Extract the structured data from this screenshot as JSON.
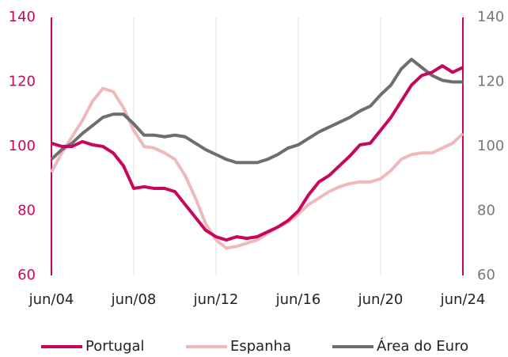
{
  "chart_data": {
    "type": "line",
    "categories": [
      "jun/04",
      null,
      null,
      null,
      null,
      null,
      null,
      null,
      "jun/08",
      null,
      null,
      null,
      null,
      null,
      null,
      null,
      "jun/12",
      null,
      null,
      null,
      null,
      null,
      null,
      null,
      "jun/16",
      null,
      null,
      null,
      null,
      null,
      null,
      null,
      "jun/20",
      null,
      null,
      null,
      null,
      null,
      null,
      null,
      "jun/24"
    ],
    "series": [
      {
        "name": "Portugal",
        "color": "#c8075c",
        "values": [
          101,
          100,
          100,
          101.5,
          100.5,
          100,
          98,
          94,
          87,
          87.5,
          87,
          87,
          86,
          82,
          78,
          74,
          72,
          71,
          72,
          71.5,
          72,
          73.5,
          75,
          77,
          80,
          85,
          89,
          91,
          94,
          97,
          100.5,
          101,
          105,
          109,
          114,
          119,
          122,
          123,
          125,
          123,
          124.5
        ]
      },
      {
        "name": "Espanha",
        "color": "#efb9bc",
        "values": [
          92,
          98,
          103,
          108,
          114,
          118,
          117,
          112,
          105,
          100,
          99.5,
          98,
          96,
          91,
          84,
          76,
          71,
          68.5,
          69,
          70,
          71,
          73,
          75,
          76.5,
          79,
          82,
          84,
          86,
          87.5,
          88.5,
          89,
          89,
          90,
          92.5,
          96,
          97.5,
          98,
          98,
          99.5,
          101,
          104
        ]
      },
      {
        "name": "Área do Euro",
        "color": "#6e6e6e",
        "values": [
          96,
          99,
          101,
          104,
          106.5,
          109,
          110,
          110,
          107,
          103.5,
          103.5,
          103,
          103.5,
          103,
          101,
          99,
          97.5,
          96,
          95,
          95,
          95,
          96,
          97.5,
          99.5,
          100.5,
          102.5,
          104.5,
          106,
          107.5,
          109,
          111,
          112.5,
          116,
          119,
          124,
          127,
          124.5,
          122,
          120.5,
          120,
          120
        ]
      }
    ],
    "ylim": [
      60,
      140
    ],
    "yticks": [
      60,
      80,
      100,
      120,
      140
    ],
    "y2lim": [
      60,
      140
    ],
    "y2ticks": [
      60,
      80,
      100,
      120,
      140
    ],
    "left_axis_color": "#c8075c",
    "right_axis_color": "#777777",
    "grid": true,
    "legend": "bottom"
  }
}
